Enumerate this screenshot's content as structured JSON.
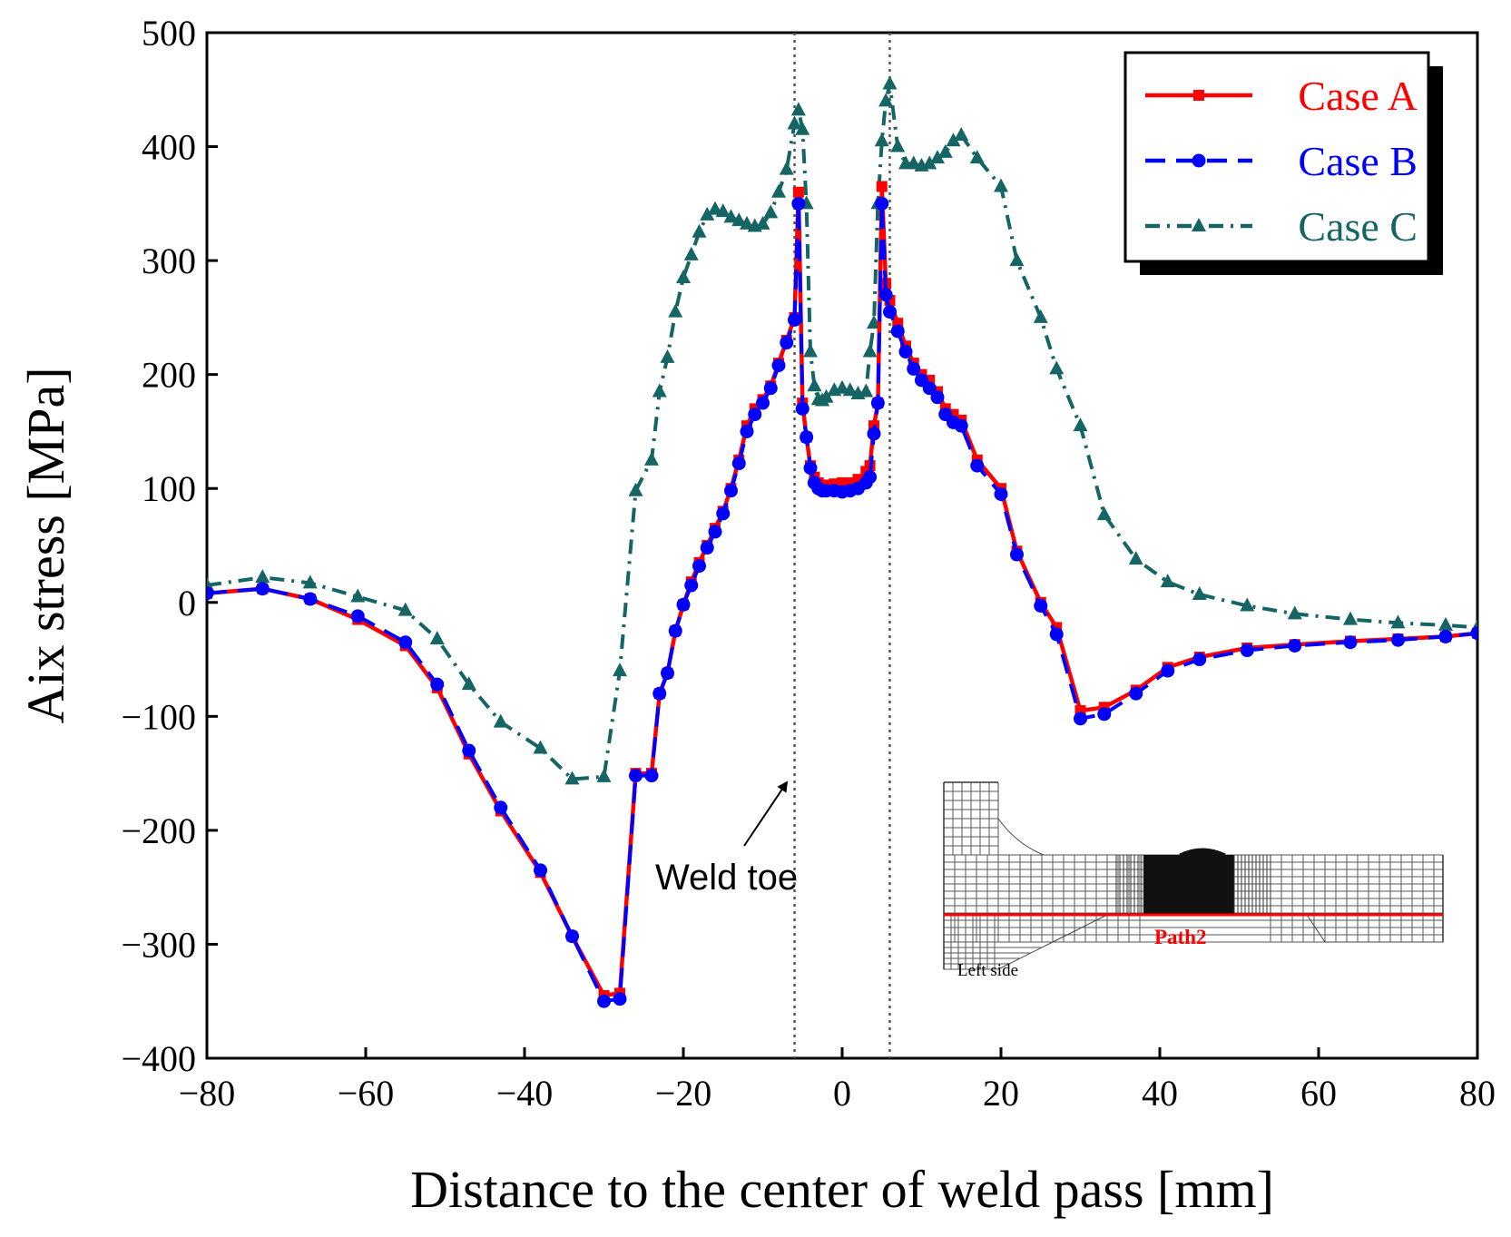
{
  "chart_data": {
    "type": "line",
    "title": "",
    "xlabel": "Distance to the center of weld pass [mm]",
    "ylabel": "Aix stress [MPa]",
    "xlim": [
      -80,
      80
    ],
    "ylim": [
      -400,
      500
    ],
    "xticks": [
      -80,
      -60,
      -40,
      -20,
      0,
      20,
      40,
      60,
      80
    ],
    "yticks": [
      -400,
      -300,
      -200,
      -100,
      0,
      100,
      200,
      300,
      400,
      500
    ],
    "xtick_labels": [
      "−80",
      "−60",
      "−40",
      "−20",
      "0",
      "20",
      "40",
      "60",
      "80"
    ],
    "ytick_labels": [
      "−400",
      "−300",
      "−200",
      "−100",
      "0",
      "100",
      "200",
      "300",
      "400",
      "500"
    ],
    "grid": false,
    "legend_position": "top-right",
    "vlines": [
      -6,
      6
    ],
    "series": [
      {
        "name": "Case A",
        "color": "#ff0000",
        "marker": "square",
        "dash": "solid",
        "x": [
          -80,
          -73,
          -67,
          -61,
          -55,
          -51,
          -47,
          -43,
          -38,
          -34,
          -30,
          -28,
          -26,
          -24,
          -23,
          -22,
          -21,
          -20,
          -19,
          -18,
          -17,
          -16,
          -15,
          -14,
          -13,
          -12,
          -11,
          -10,
          -9,
          -8,
          -7,
          -6,
          -5.5,
          -5,
          -4.5,
          -4,
          -3.5,
          -3,
          -2.5,
          -2,
          -1,
          0,
          1,
          2,
          3,
          3.5,
          4,
          4.5,
          5,
          5.5,
          6,
          7,
          8,
          9,
          10,
          11,
          12,
          13,
          14,
          15,
          17,
          20,
          22,
          25,
          27,
          30,
          33,
          37,
          41,
          45,
          51,
          57,
          64,
          70,
          76,
          80
        ],
        "values": [
          8,
          12,
          3,
          -15,
          -38,
          -75,
          -133,
          -183,
          -237,
          -293,
          -345,
          -343,
          -150,
          -150,
          -80,
          -62,
          -25,
          -2,
          18,
          35,
          50,
          65,
          80,
          100,
          125,
          155,
          170,
          178,
          190,
          210,
          230,
          250,
          360,
          175,
          145,
          120,
          110,
          105,
          103,
          103,
          104,
          105,
          105,
          108,
          115,
          120,
          155,
          175,
          365,
          280,
          265,
          245,
          225,
          210,
          200,
          195,
          185,
          170,
          165,
          160,
          125,
          100,
          45,
          0,
          -22,
          -95,
          -92,
          -77,
          -57,
          -48,
          -40,
          -37,
          -34,
          -32,
          -30,
          -27
        ]
      },
      {
        "name": "Case B",
        "color": "#0000ff",
        "marker": "circle",
        "dash": "dashed",
        "x": [
          -80,
          -73,
          -67,
          -61,
          -55,
          -51,
          -47,
          -43,
          -38,
          -34,
          -30,
          -28,
          -26,
          -24,
          -23,
          -22,
          -21,
          -20,
          -19,
          -18,
          -17,
          -16,
          -15,
          -14,
          -13,
          -12,
          -11,
          -10,
          -9,
          -8,
          -7,
          -6,
          -5.5,
          -5,
          -4.5,
          -4,
          -3.5,
          -3,
          -2.5,
          -2,
          -1,
          0,
          1,
          2,
          3,
          3.5,
          4,
          4.5,
          5,
          5.5,
          6,
          7,
          8,
          9,
          10,
          11,
          12,
          13,
          14,
          15,
          17,
          20,
          22,
          25,
          27,
          30,
          33,
          37,
          41,
          45,
          51,
          57,
          64,
          70,
          76,
          80
        ],
        "values": [
          8,
          12,
          3,
          -12,
          -35,
          -72,
          -130,
          -180,
          -235,
          -293,
          -350,
          -348,
          -152,
          -152,
          -80,
          -62,
          -25,
          -2,
          15,
          32,
          48,
          62,
          78,
          98,
          122,
          150,
          165,
          175,
          188,
          208,
          228,
          248,
          350,
          170,
          145,
          118,
          105,
          100,
          98,
          98,
          98,
          97,
          98,
          100,
          105,
          110,
          148,
          175,
          350,
          270,
          255,
          238,
          220,
          205,
          195,
          188,
          180,
          165,
          158,
          155,
          120,
          95,
          42,
          -3,
          -28,
          -102,
          -98,
          -80,
          -60,
          -50,
          -42,
          -38,
          -35,
          -33,
          -30,
          -27
        ]
      },
      {
        "name": "Case C",
        "color": "#166565",
        "marker": "triangle",
        "dash": "dashdot",
        "x": [
          -80,
          -73,
          -67,
          -61,
          -55,
          -51,
          -47,
          -43,
          -38,
          -34,
          -30,
          -28,
          -26,
          -24,
          -23,
          -22,
          -21,
          -20,
          -19,
          -18,
          -17,
          -16,
          -15,
          -14,
          -13,
          -12,
          -11,
          -10,
          -9,
          -8,
          -7,
          -6,
          -5.5,
          -5,
          -4.5,
          -4,
          -3.5,
          -3,
          -2.5,
          -2,
          -1,
          0,
          1,
          2,
          3,
          3.5,
          4,
          4.5,
          5,
          5.5,
          6,
          7,
          8,
          9,
          10,
          11,
          12,
          13,
          14,
          15,
          17,
          20,
          22,
          25,
          27,
          30,
          33,
          37,
          41,
          45,
          51,
          57,
          64,
          70,
          76,
          80
        ],
        "values": [
          15,
          22,
          17,
          5,
          -7,
          -32,
          -72,
          -105,
          -128,
          -155,
          -153,
          -60,
          98,
          125,
          185,
          215,
          255,
          285,
          305,
          325,
          340,
          345,
          343,
          338,
          335,
          332,
          330,
          332,
          342,
          360,
          380,
          420,
          432,
          415,
          350,
          220,
          190,
          178,
          177,
          180,
          186,
          188,
          186,
          183,
          185,
          220,
          245,
          350,
          405,
          440,
          455,
          400,
          385,
          385,
          383,
          385,
          390,
          395,
          405,
          410,
          390,
          365,
          300,
          250,
          205,
          155,
          77,
          38,
          18,
          7,
          -3,
          -10,
          -15,
          -18,
          -20,
          -22
        ]
      }
    ],
    "annotations": [
      {
        "text": "Weld toe",
        "target_x": -6
      }
    ]
  },
  "legend": {
    "items": [
      {
        "label": "Case A",
        "color": "#ff0000"
      },
      {
        "label": "Case B",
        "color": "#0000ff"
      },
      {
        "label": "Case C",
        "color": "#166565"
      }
    ]
  },
  "annotation": {
    "label": "Weld toe"
  },
  "inset": {
    "path_label": "Path2",
    "side_label": "Left side",
    "path_color": "#ff0000"
  }
}
